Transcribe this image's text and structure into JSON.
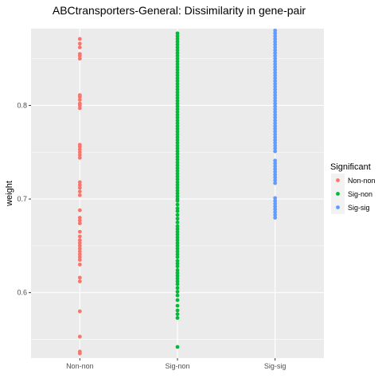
{
  "chart_data": {
    "type": "scatter",
    "title": "ABCtransporters-General: Dissimilarity in gene-pair",
    "xlabel": "",
    "ylabel": "weight",
    "categories": [
      "Non-non",
      "Sig-non",
      "Sig-sig"
    ],
    "ylim": [
      0.53,
      0.882
    ],
    "yticks": [
      0.6,
      0.7,
      0.8
    ],
    "ytick_labels": [
      "0.6",
      "0.7",
      "0.8"
    ],
    "grid": true,
    "legend": {
      "title": "Significant",
      "position": "right",
      "items": [
        "Non-non",
        "Sig-non",
        "Sig-sig"
      ]
    },
    "colors": {
      "Non-non": "#F8766D",
      "Sig-non": "#00BA38",
      "Sig-sig": "#619CFF",
      "panel_background": "#EBEBEB",
      "grid": "#FFFFFF"
    },
    "series": [
      {
        "name": "Non-non",
        "category": "Non-non",
        "values": [
          0.535,
          0.537,
          0.553,
          0.58,
          0.612,
          0.616,
          0.63,
          0.635,
          0.638,
          0.641,
          0.644,
          0.647,
          0.65,
          0.653,
          0.656,
          0.66,
          0.665,
          0.674,
          0.677,
          0.68,
          0.688,
          0.704,
          0.708,
          0.712,
          0.715,
          0.718,
          0.744,
          0.747,
          0.75,
          0.753,
          0.756,
          0.758,
          0.797,
          0.8,
          0.802,
          0.806,
          0.809,
          0.811,
          0.85,
          0.853,
          0.855,
          0.862,
          0.866,
          0.871
        ]
      },
      {
        "name": "Sig-non",
        "category": "Sig-non",
        "values": [
          0.542,
          0.573,
          0.577,
          0.581,
          0.586,
          0.592,
          0.597,
          0.601,
          0.605,
          0.609,
          0.612,
          0.615,
          0.618,
          0.621,
          0.624,
          0.628,
          0.631,
          0.634,
          0.638,
          0.641,
          0.644,
          0.647,
          0.65,
          0.653,
          0.656,
          0.659,
          0.662,
          0.665,
          0.668,
          0.671,
          0.675,
          0.679,
          0.683,
          0.687,
          0.69,
          0.694,
          0.698,
          0.7,
          0.703,
          0.706,
          0.709,
          0.712,
          0.715,
          0.718,
          0.721,
          0.724,
          0.727,
          0.73,
          0.733,
          0.736,
          0.739,
          0.742,
          0.745,
          0.748,
          0.751,
          0.754,
          0.757,
          0.76,
          0.763,
          0.766,
          0.769,
          0.772,
          0.775,
          0.778,
          0.781,
          0.784,
          0.787,
          0.79,
          0.793,
          0.796,
          0.799,
          0.802,
          0.805,
          0.808,
          0.811,
          0.814,
          0.817,
          0.82,
          0.823,
          0.826,
          0.829,
          0.832,
          0.835,
          0.838,
          0.841,
          0.844,
          0.847,
          0.85,
          0.853,
          0.856,
          0.859,
          0.862,
          0.865,
          0.868,
          0.871,
          0.874,
          0.877
        ]
      },
      {
        "name": "Sig-sig",
        "category": "Sig-sig",
        "values": [
          0.68,
          0.683,
          0.686,
          0.689,
          0.692,
          0.695,
          0.698,
          0.701,
          0.717,
          0.72,
          0.723,
          0.726,
          0.729,
          0.732,
          0.735,
          0.738,
          0.741,
          0.751,
          0.754,
          0.757,
          0.76,
          0.763,
          0.766,
          0.769,
          0.772,
          0.775,
          0.778,
          0.781,
          0.784,
          0.787,
          0.79,
          0.793,
          0.796,
          0.799,
          0.802,
          0.805,
          0.808,
          0.811,
          0.814,
          0.817,
          0.82,
          0.823,
          0.826,
          0.829,
          0.832,
          0.835,
          0.838,
          0.841,
          0.844,
          0.847,
          0.85,
          0.853,
          0.856,
          0.859,
          0.862,
          0.865,
          0.868,
          0.871,
          0.874,
          0.877,
          0.88
        ]
      }
    ]
  }
}
